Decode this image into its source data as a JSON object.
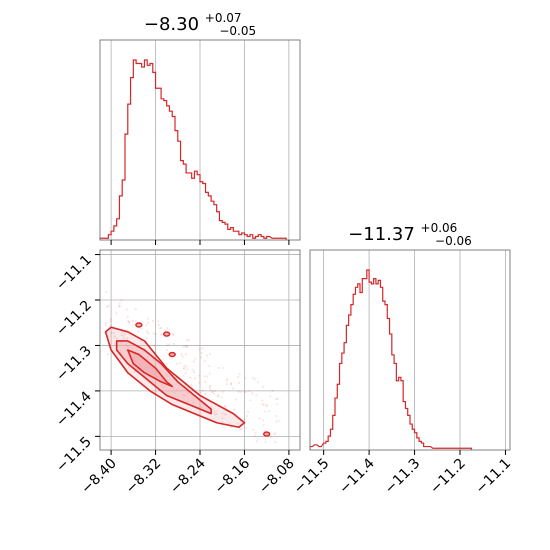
{
  "colors": {
    "accent": "#d62728",
    "contour_fill": "#f2a8ac",
    "grid": "#b0b0b0",
    "axes": "#808080"
  },
  "chart_data": [
    {
      "type": "histogram",
      "panel": "top-left",
      "title": {
        "main": "−8.30",
        "sup": "+0.07",
        "sub": "−0.05"
      },
      "xlim": [
        -8.42,
        -8.06
      ],
      "grid": true,
      "bins": [
        [
          -8.42,
          1
        ],
        [
          -8.41,
          1
        ],
        [
          -8.405,
          3
        ],
        [
          -8.4,
          5
        ],
        [
          -8.395,
          8
        ],
        [
          -8.39,
          12
        ],
        [
          -8.385,
          25
        ],
        [
          -8.38,
          34
        ],
        [
          -8.375,
          60
        ],
        [
          -8.37,
          77
        ],
        [
          -8.365,
          92
        ],
        [
          -8.36,
          102
        ],
        [
          -8.355,
          100
        ],
        [
          -8.35,
          100
        ],
        [
          -8.345,
          98
        ],
        [
          -8.34,
          102
        ],
        [
          -8.335,
          99
        ],
        [
          -8.33,
          100
        ],
        [
          -8.325,
          95
        ],
        [
          -8.32,
          86
        ],
        [
          -8.315,
          86
        ],
        [
          -8.31,
          80
        ],
        [
          -8.305,
          79
        ],
        [
          -8.3,
          76
        ],
        [
          -8.295,
          73
        ],
        [
          -8.29,
          70
        ],
        [
          -8.285,
          62
        ],
        [
          -8.28,
          56
        ],
        [
          -8.275,
          45
        ],
        [
          -8.27,
          43
        ],
        [
          -8.265,
          38
        ],
        [
          -8.26,
          38
        ],
        [
          -8.255,
          35
        ],
        [
          -8.25,
          39
        ],
        [
          -8.245,
          37
        ],
        [
          -8.24,
          33
        ],
        [
          -8.235,
          32
        ],
        [
          -8.23,
          27
        ],
        [
          -8.225,
          25
        ],
        [
          -8.22,
          22
        ],
        [
          -8.215,
          20
        ],
        [
          -8.21,
          16
        ],
        [
          -8.205,
          11
        ],
        [
          -8.2,
          10
        ],
        [
          -8.195,
          9
        ],
        [
          -8.19,
          6
        ],
        [
          -8.185,
          7
        ],
        [
          -8.18,
          5
        ],
        [
          -8.175,
          5
        ],
        [
          -8.17,
          3
        ],
        [
          -8.165,
          4
        ],
        [
          -8.16,
          3
        ],
        [
          -8.155,
          2
        ],
        [
          -8.15,
          3
        ],
        [
          -8.145,
          1
        ],
        [
          -8.14,
          2
        ],
        [
          -8.135,
          3
        ],
        [
          -8.13,
          2
        ],
        [
          -8.125,
          1
        ],
        [
          -8.12,
          2
        ],
        [
          -8.11,
          1
        ],
        [
          -8.1,
          1
        ],
        [
          -8.09,
          1
        ]
      ]
    },
    {
      "type": "contour",
      "panel": "bottom-left",
      "xlim": [
        -8.42,
        -8.06
      ],
      "ylim": [
        -11.53,
        -11.09
      ],
      "xticks": [
        "−8.40",
        "−8.32",
        "−8.24",
        "−8.16",
        "−8.08"
      ],
      "yticks": [
        "−11.1",
        "−11.2",
        "−11.3",
        "−11.4",
        "−11.5"
      ],
      "grid": true,
      "levels": [
        {
          "label": "outer",
          "points": [
            [
              -8.41,
              -11.27
            ],
            [
              -8.4,
              -11.26
            ],
            [
              -8.37,
              -11.27
            ],
            [
              -8.34,
              -11.29
            ],
            [
              -8.32,
              -11.32
            ],
            [
              -8.3,
              -11.35
            ],
            [
              -8.28,
              -11.37
            ],
            [
              -8.26,
              -11.39
            ],
            [
              -8.24,
              -11.41
            ],
            [
              -8.21,
              -11.43
            ],
            [
              -8.18,
              -11.45
            ],
            [
              -8.16,
              -11.47
            ],
            [
              -8.17,
              -11.48
            ],
            [
              -8.21,
              -11.47
            ],
            [
              -8.25,
              -11.45
            ],
            [
              -8.29,
              -11.43
            ],
            [
              -8.33,
              -11.4
            ],
            [
              -8.37,
              -11.36
            ],
            [
              -8.4,
              -11.31
            ]
          ]
        },
        {
          "label": "middle",
          "points": [
            [
              -8.39,
              -11.29
            ],
            [
              -8.37,
              -11.29
            ],
            [
              -8.34,
              -11.31
            ],
            [
              -8.31,
              -11.34
            ],
            [
              -8.28,
              -11.38
            ],
            [
              -8.25,
              -11.41
            ],
            [
              -8.22,
              -11.44
            ],
            [
              -8.22,
              -11.45
            ],
            [
              -8.26,
              -11.43
            ],
            [
              -8.3,
              -11.41
            ],
            [
              -8.34,
              -11.37
            ],
            [
              -8.37,
              -11.34
            ],
            [
              -8.39,
              -11.31
            ]
          ]
        },
        {
          "label": "inner",
          "points": [
            [
              -8.37,
              -11.31
            ],
            [
              -8.35,
              -11.32
            ],
            [
              -8.32,
              -11.35
            ],
            [
              -8.3,
              -11.38
            ],
            [
              -8.29,
              -11.39
            ],
            [
              -8.31,
              -11.38
            ],
            [
              -8.34,
              -11.36
            ],
            [
              -8.36,
              -11.34
            ]
          ]
        }
      ],
      "islands": [
        [
          -8.3,
          -11.275
        ],
        [
          -8.35,
          -11.255
        ],
        [
          -8.29,
          -11.32
        ],
        [
          -8.12,
          -11.495
        ]
      ]
    },
    {
      "type": "histogram",
      "panel": "bottom-right",
      "title": {
        "main": "−11.37",
        "sup": "+0.06",
        "sub": "−0.06"
      },
      "xlim": [
        -11.53,
        -11.09
      ],
      "xticks": [
        "−11.5",
        "−11.4",
        "−11.3",
        "−11.2",
        "−11.1"
      ],
      "grid": true,
      "bins": [
        [
          -11.53,
          2
        ],
        [
          -11.52,
          3
        ],
        [
          -11.51,
          2
        ],
        [
          -11.5,
          4
        ],
        [
          -11.495,
          5
        ],
        [
          -11.49,
          8
        ],
        [
          -11.485,
          12
        ],
        [
          -11.48,
          20
        ],
        [
          -11.475,
          30
        ],
        [
          -11.47,
          38
        ],
        [
          -11.465,
          50
        ],
        [
          -11.46,
          56
        ],
        [
          -11.455,
          62
        ],
        [
          -11.45,
          72
        ],
        [
          -11.445,
          78
        ],
        [
          -11.44,
          84
        ],
        [
          -11.435,
          90
        ],
        [
          -11.43,
          94
        ],
        [
          -11.425,
          96
        ],
        [
          -11.42,
          91
        ],
        [
          -11.415,
          99
        ],
        [
          -11.41,
          99
        ],
        [
          -11.405,
          104
        ],
        [
          -11.4,
          97
        ],
        [
          -11.395,
          96
        ],
        [
          -11.39,
          99
        ],
        [
          -11.385,
          96
        ],
        [
          -11.38,
          98
        ],
        [
          -11.375,
          94
        ],
        [
          -11.37,
          86
        ],
        [
          -11.365,
          84
        ],
        [
          -11.36,
          76
        ],
        [
          -11.355,
          67
        ],
        [
          -11.35,
          55
        ],
        [
          -11.345,
          50
        ],
        [
          -11.34,
          40
        ],
        [
          -11.335,
          42
        ],
        [
          -11.33,
          40
        ],
        [
          -11.325,
          28
        ],
        [
          -11.32,
          24
        ],
        [
          -11.315,
          20
        ],
        [
          -11.31,
          15
        ],
        [
          -11.305,
          12
        ],
        [
          -11.3,
          10
        ],
        [
          -11.295,
          7
        ],
        [
          -11.29,
          5
        ],
        [
          -11.285,
          4
        ],
        [
          -11.28,
          2
        ],
        [
          -11.27,
          2
        ],
        [
          -11.26,
          1
        ],
        [
          -11.25,
          1
        ],
        [
          -11.24,
          1
        ],
        [
          -11.23,
          1
        ],
        [
          -11.2,
          1
        ],
        [
          -11.18,
          1
        ]
      ]
    }
  ]
}
